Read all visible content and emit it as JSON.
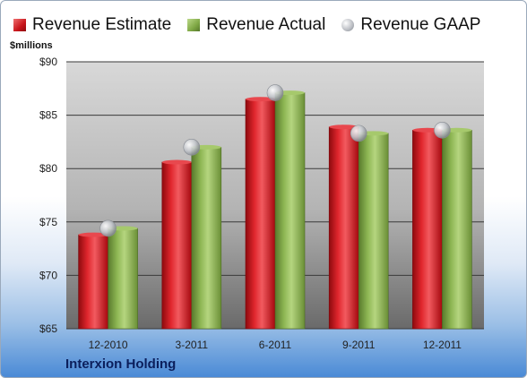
{
  "chart_data": {
    "type": "bar",
    "categories": [
      "12-2010",
      "3-2011",
      "6-2011",
      "9-2011",
      "12-2011"
    ],
    "series": [
      {
        "name": "Revenue Estimate",
        "values": [
          73.8,
          80.6,
          86.5,
          83.9,
          83.6
        ],
        "color": "#c8151b",
        "mark": "bar"
      },
      {
        "name": "Revenue Actual",
        "values": [
          74.4,
          82.0,
          87.1,
          83.3,
          83.6
        ],
        "color": "#7fa845",
        "mark": "bar"
      },
      {
        "name": "Revenue GAAP",
        "values": [
          74.4,
          82.0,
          87.1,
          83.3,
          83.6
        ],
        "color": "#b9bcc2",
        "mark": "circle"
      }
    ],
    "y_ticks": [
      "$65",
      "$70",
      "$75",
      "$80",
      "$85",
      "$90"
    ],
    "ylim": [
      65,
      90
    ],
    "ylabel": "$millions",
    "legend_position": "top",
    "grid": true,
    "company": "Interxion Holding"
  }
}
